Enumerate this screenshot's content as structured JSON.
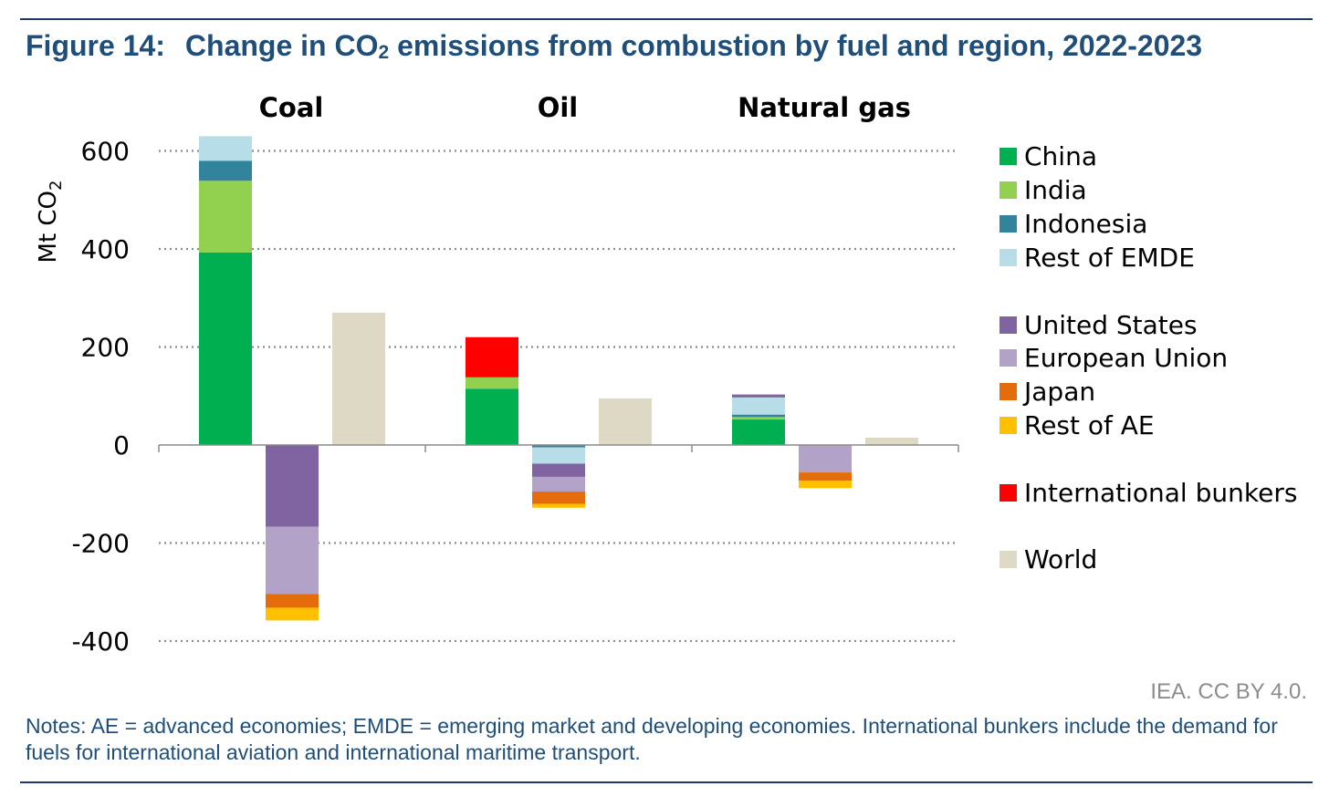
{
  "figure": {
    "number": "Figure 14:",
    "title_main": "Change in CO",
    "title_sub": "2",
    "title_rest": " emissions from combustion by fuel and region, 2022-2023"
  },
  "source": "IEA. CC BY 4.0.",
  "notes": "Notes: AE = advanced economies; EMDE = emerging market and developing economies. International bunkers include the demand for fuels for international aviation and international maritime transport.",
  "chart_data": {
    "type": "bar",
    "stacked": true,
    "title": "Change in CO2 emissions from combustion by fuel and region, 2022-2023",
    "ylabel": "Mt CO",
    "ylabel_sub": "2",
    "ylim": [
      -400,
      600
    ],
    "yticks": [
      600,
      400,
      200,
      0,
      -200,
      -400
    ],
    "grid": true,
    "legend_position": "right",
    "groups": [
      {
        "name": "Coal",
        "bars": [
          {
            "stack": "EMDE",
            "values": {
              "China": 393,
              "India": 146,
              "Indonesia": 41,
              "Rest of EMDE": 50
            }
          },
          {
            "stack": "AE",
            "values": {
              "United States": -167,
              "European Union": -137,
              "Japan": -28,
              "Rest of AE": -26
            }
          },
          {
            "stack": "World",
            "values": {
              "World": 270
            }
          }
        ]
      },
      {
        "name": "Oil",
        "bars": [
          {
            "stack": "EMDE",
            "values": {
              "China": 115,
              "India": 23,
              "International bunkers": 82
            }
          },
          {
            "stack": "AE",
            "values": {
              "Indonesia": -5,
              "Rest of EMDE": -33,
              "United States": -27,
              "European Union": -30,
              "Japan": -25,
              "Rest of AE": -8
            }
          },
          {
            "stack": "World",
            "values": {
              "World": 95
            }
          }
        ]
      },
      {
        "name": "Natural gas",
        "bars": [
          {
            "stack": "EMDE",
            "values": {
              "China": 52,
              "India": 5,
              "Indonesia": 5,
              "Rest of EMDE": 35,
              "United States": 6
            }
          },
          {
            "stack": "AE",
            "values": {
              "European Union": -56,
              "Japan": -17,
              "Rest of AE": -15
            }
          },
          {
            "stack": "World",
            "values": {
              "World": 15
            }
          }
        ]
      }
    ],
    "legend": [
      {
        "name": "China",
        "color": "#00b050"
      },
      {
        "name": "India",
        "color": "#92d050"
      },
      {
        "name": "Indonesia",
        "color": "#31849b"
      },
      {
        "name": "Rest of EMDE",
        "color": "#b7dee8"
      },
      {
        "name": "United States",
        "color": "#8064a2"
      },
      {
        "name": "European Union",
        "color": "#b3a2c7"
      },
      {
        "name": "Japan",
        "color": "#e46c0a"
      },
      {
        "name": "Rest of AE",
        "color": "#ffc000"
      },
      {
        "name": "International bunkers",
        "color": "#ff0000"
      },
      {
        "name": "World",
        "color": "#ddd9c4"
      }
    ]
  }
}
